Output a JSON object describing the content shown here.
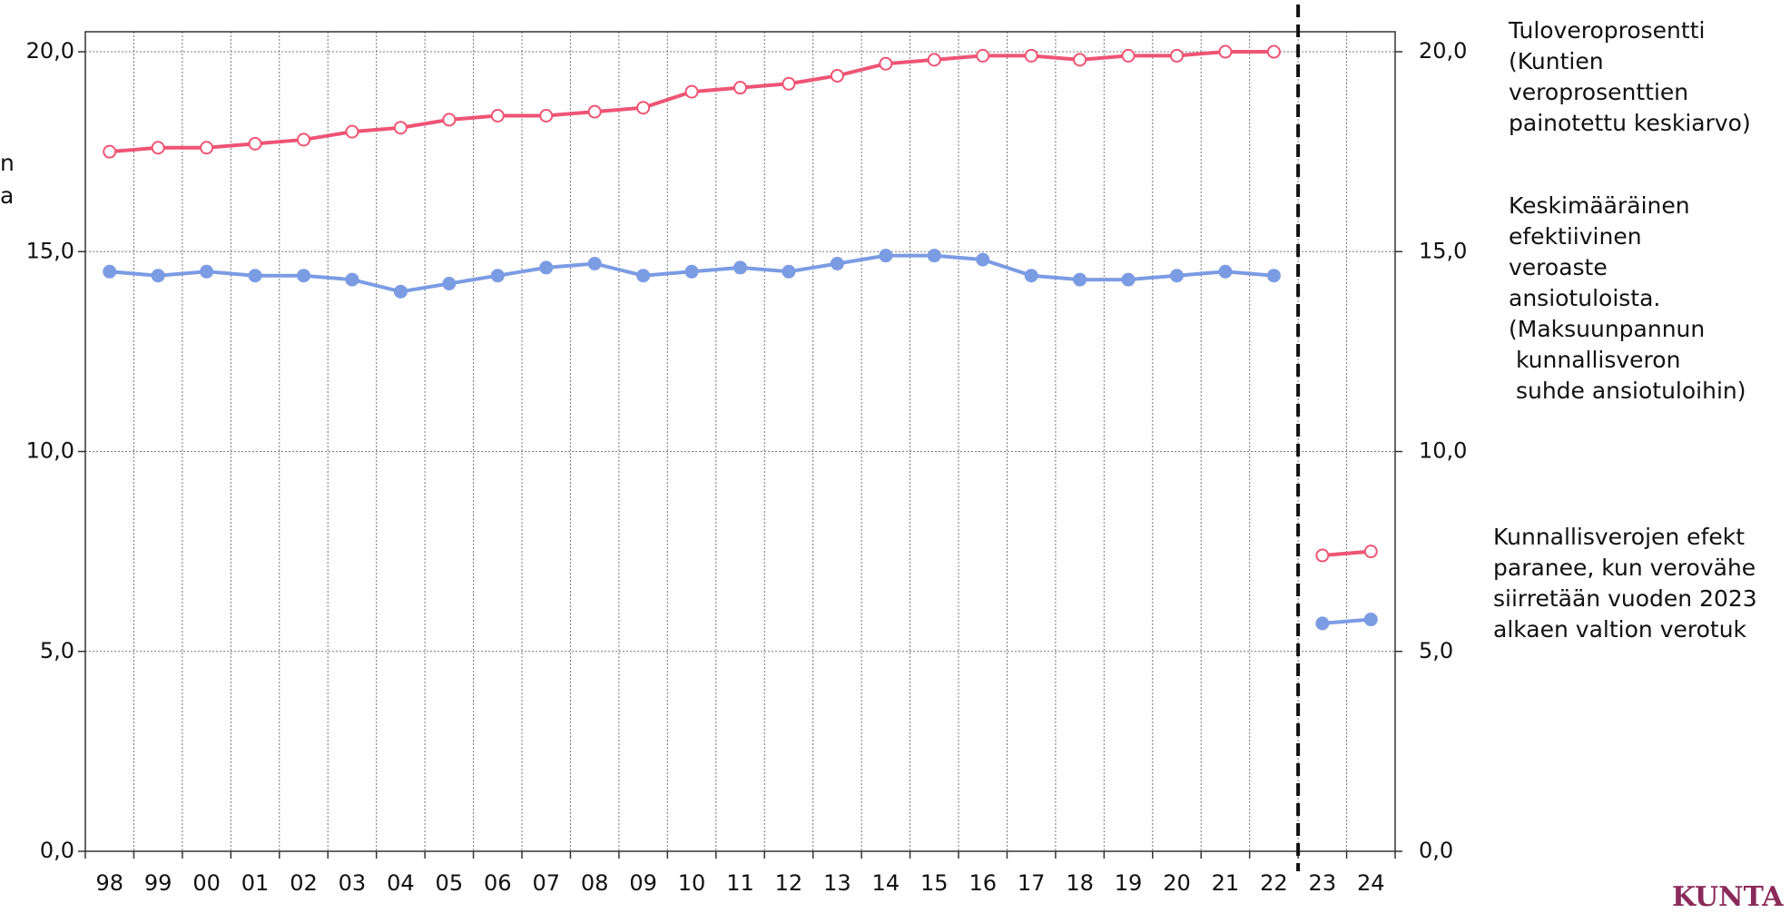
{
  "chart_data": {
    "type": "line",
    "categories": [
      "98",
      "99",
      "00",
      "01",
      "02",
      "03",
      "04",
      "05",
      "06",
      "07",
      "08",
      "09",
      "10",
      "11",
      "12",
      "13",
      "14",
      "15",
      "16",
      "17",
      "18",
      "19",
      "20",
      "21",
      "22",
      "23",
      "24"
    ],
    "series": [
      {
        "name": "Tuloveroprosentti\n(Kuntien\nveroprosenttien\npainotettu keskiarvo)",
        "color": "#ef5474",
        "marker": "open",
        "values": [
          17.5,
          17.6,
          17.6,
          17.7,
          17.8,
          18.0,
          18.1,
          18.3,
          18.4,
          18.4,
          18.5,
          18.6,
          19.0,
          19.1,
          19.2,
          19.4,
          19.7,
          19.8,
          19.9,
          19.9,
          19.8,
          19.9,
          19.9,
          20.0,
          20.0,
          7.4,
          7.5
        ]
      },
      {
        "name": "Keskimääräinen\nefektiivinen\nveroaste\nansiotuloista.\n(Maksuunpannun\n kunnallisveron\n suhde ansiotuloihin)",
        "color": "#7b9be3",
        "marker": "filled",
        "values": [
          14.5,
          14.4,
          14.5,
          14.4,
          14.4,
          14.3,
          14.0,
          14.2,
          14.4,
          14.6,
          14.7,
          14.4,
          14.5,
          14.6,
          14.5,
          14.7,
          14.9,
          14.9,
          14.8,
          14.4,
          14.3,
          14.3,
          14.4,
          14.5,
          14.4,
          5.7,
          5.8
        ]
      }
    ],
    "ylim": [
      0,
      20.5
    ],
    "yticks": [
      {
        "value": 0,
        "label": "0,0"
      },
      {
        "value": 5,
        "label": "5,0"
      },
      {
        "value": 10,
        "label": "10,0"
      },
      {
        "value": 15,
        "label": "15,0"
      },
      {
        "value": 20,
        "label": "20,0"
      }
    ],
    "y2lim": [
      0,
      20.5
    ],
    "y2ticks": [
      {
        "value": 0,
        "label": "0,0"
      },
      {
        "value": 5,
        "label": "5,0"
      },
      {
        "value": 10,
        "label": "10,0"
      },
      {
        "value": 15,
        "label": "15,0"
      },
      {
        "value": 20,
        "label": "20,0"
      }
    ],
    "grid": true,
    "divider_after_index": 24,
    "annotation": "Kunnallisverojen efekt\nparanee, kun verovähe\nsiirretään vuoden 2023\nalkaen valtion verotuk",
    "y_label_fragments": [
      "n",
      "a"
    ],
    "logo": "KUNTA"
  }
}
